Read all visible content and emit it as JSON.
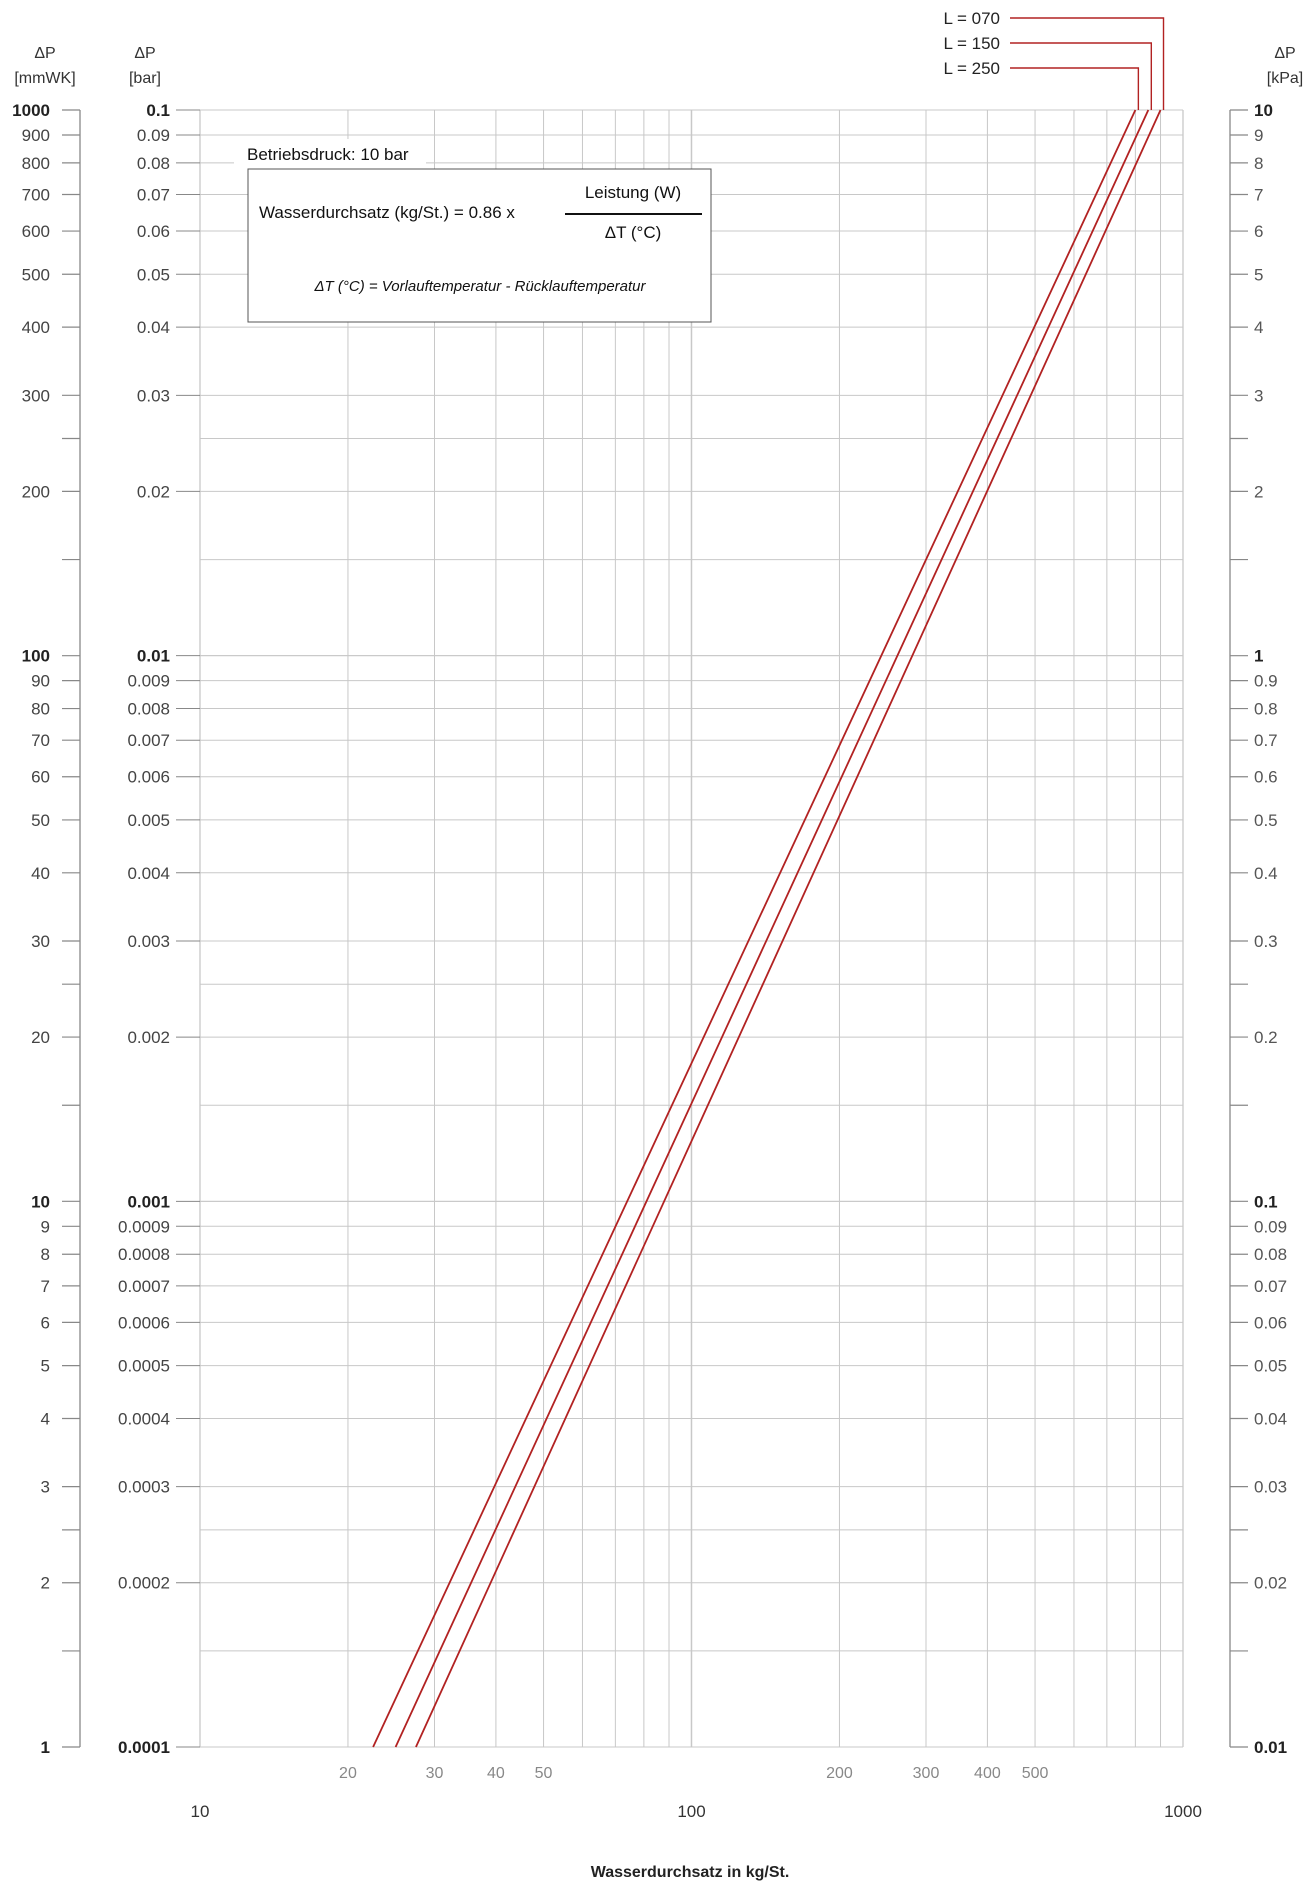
{
  "chart_data": {
    "type": "line",
    "scale": {
      "x": "log",
      "y": "log"
    },
    "grid": true,
    "xlim": [
      10,
      1000
    ],
    "ylim": [
      1,
      1000
    ],
    "xlabel": "Wasserdurchsatz in kg/St.",
    "x_ticks_minor": [
      20,
      30,
      40,
      50,
      200,
      300,
      400,
      500
    ],
    "x_ticks_major": [
      10,
      100,
      1000
    ],
    "left_axis_mmWK": {
      "header": [
        "ΔP",
        "[mmWK]"
      ],
      "labels": [
        "1000",
        "900",
        "800",
        "700",
        "600",
        "500",
        "400",
        "300",
        "200",
        "100",
        "90",
        "80",
        "70",
        "60",
        "50",
        "40",
        "30",
        "20",
        "10",
        "9",
        "8",
        "7",
        "6",
        "5",
        "4",
        "3",
        "2",
        "1"
      ],
      "values": [
        1000,
        900,
        800,
        700,
        600,
        500,
        400,
        300,
        200,
        100,
        90,
        80,
        70,
        60,
        50,
        40,
        30,
        20,
        10,
        9,
        8,
        7,
        6,
        5,
        4,
        3,
        2,
        1
      ],
      "extra_ticks": [
        250,
        150,
        25,
        15,
        2.5,
        1.5
      ]
    },
    "left_axis_bar": {
      "header": [
        "ΔP",
        "[bar]"
      ],
      "labels": [
        "0.1",
        "0.09",
        "0.08",
        "0.07",
        "0.06",
        "0.05",
        "0.04",
        "0.03",
        "0.02",
        "0.01",
        "0.009",
        "0.008",
        "0.007",
        "0.006",
        "0.005",
        "0.004",
        "0.003",
        "0.002",
        "0.001",
        "0.0009",
        "0.0008",
        "0.0007",
        "0.0006",
        "0.0005",
        "0.0004",
        "0.0003",
        "0.0002",
        "0.0001"
      ],
      "values": [
        1000,
        900,
        800,
        700,
        600,
        500,
        400,
        300,
        200,
        100,
        90,
        80,
        70,
        60,
        50,
        40,
        30,
        20,
        10,
        9,
        8,
        7,
        6,
        5,
        4,
        3,
        2,
        1
      ]
    },
    "right_axis_kPa": {
      "header": [
        "ΔP",
        "[kPa]"
      ],
      "labels": [
        "10",
        "9",
        "8",
        "7",
        "6",
        "5",
        "4",
        "3",
        "2",
        "1",
        "0.9",
        "0.8",
        "0.7",
        "0.6",
        "0.5",
        "0.4",
        "0.3",
        "0.2",
        "0.1",
        "0.09",
        "0.08",
        "0.07",
        "0.06",
        "0.05",
        "0.04",
        "0.03",
        "0.02",
        "0.01"
      ],
      "values": [
        1000,
        900,
        800,
        700,
        600,
        500,
        400,
        300,
        200,
        100,
        90,
        80,
        70,
        60,
        50,
        40,
        30,
        20,
        10,
        9,
        8,
        7,
        6,
        5,
        4,
        3,
        2,
        1
      ],
      "extra_ticks": [
        250,
        150,
        25,
        15,
        2.5,
        1.5
      ]
    },
    "series": [
      {
        "name": "L = 070",
        "x": [
          22.5,
          800
        ],
        "y": [
          1,
          1000
        ]
      },
      {
        "name": "L = 150",
        "x": [
          25,
          850
        ],
        "y": [
          1,
          1000
        ]
      },
      {
        "name": "L = 250",
        "x": [
          27.5,
          900
        ],
        "y": [
          1,
          1000
        ]
      }
    ],
    "annotations": {
      "pressure": "Betriebsdruck: 10 bar",
      "formula_lhs": "Wasserdurchsatz (kg/St.) =  0.86 x",
      "formula_numerator": "Leistung (W)",
      "formula_denominator": "ΔT (°C)",
      "formula_note": "ΔT (°C) = Vorlauftemperatur - Rücklauftemperatur"
    },
    "colors": {
      "series": "#b22222",
      "grid": "#c8c8c8",
      "axis": "#888888"
    }
  }
}
